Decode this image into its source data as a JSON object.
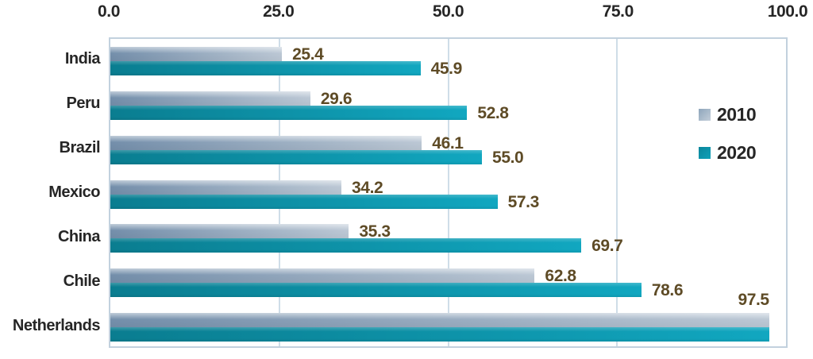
{
  "chart_data": {
    "type": "bar",
    "orientation": "horizontal",
    "title": "",
    "xlabel": "",
    "ylabel": "",
    "categories": [
      "India",
      "Peru",
      "Brazil",
      "Mexico",
      "China",
      "Chile",
      "Netherlands"
    ],
    "series": [
      {
        "name": "2010",
        "values": [
          25.4,
          29.6,
          46.1,
          34.2,
          35.3,
          62.8,
          97.5
        ],
        "labels": [
          "25.4",
          "29.6",
          "46.1",
          "34.2",
          "35.3",
          "62.8",
          null
        ]
      },
      {
        "name": "2020",
        "values": [
          45.9,
          52.8,
          55.0,
          57.3,
          69.7,
          78.6,
          97.5
        ],
        "labels": [
          "45.9",
          "52.8",
          "55.0",
          "57.3",
          "69.7",
          "78.6",
          null
        ]
      }
    ],
    "combined_label": {
      "category": "Netherlands",
      "text": "97.5",
      "value": 97.5
    },
    "xlim": [
      0,
      100
    ],
    "x_ticks": [
      {
        "value": 0,
        "label": "0.0"
      },
      {
        "value": 25,
        "label": "25.0"
      },
      {
        "value": 50,
        "label": "50.0"
      },
      {
        "value": 75,
        "label": "75.0"
      },
      {
        "value": 100,
        "label": "100.0"
      }
    ],
    "axis_position": "top",
    "grid": true,
    "legend_position": "right"
  },
  "colors": {
    "bar_2010_left": "#748fab",
    "bar_2010_right": "#bcc8d5",
    "bar_2020_left": "#0a7d90",
    "bar_2020_right": "#11a7c0",
    "value_label": "#5e4b26",
    "text": "#262626",
    "grid": "#cfdde8",
    "plot_border": "#c2d1de"
  }
}
